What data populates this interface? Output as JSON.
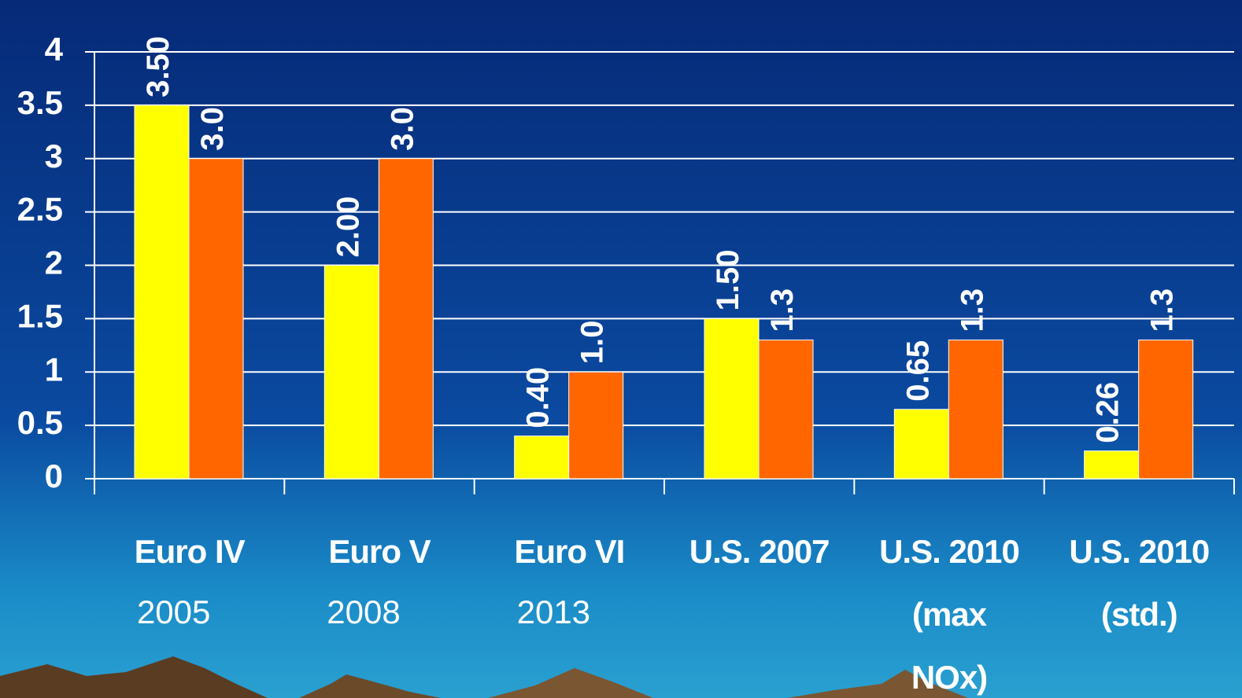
{
  "chart_data": {
    "type": "bar",
    "categories": [
      "Euro IV",
      "Euro V",
      "Euro VI",
      "U.S. 2007",
      "U.S. 2010 (max NOx)",
      "U.S. 2010 (std.)"
    ],
    "category_years": [
      "2005",
      "2008",
      "2013",
      null,
      null,
      null
    ],
    "series": [
      {
        "color": "#ffff00",
        "values": [
          3.5,
          2,
          0.4,
          1.5,
          0.65,
          0.26
        ],
        "value_labels": [
          "3.50",
          "2.00",
          "0.40",
          "1.50",
          "0.65",
          "0.26"
        ]
      },
      {
        "color": "#ff6600",
        "values": [
          3,
          3,
          1,
          1.3,
          1.3,
          1.3
        ],
        "value_labels": [
          "3.0",
          "3.0",
          "1.0",
          "1.3",
          "1.3",
          "1.3"
        ]
      }
    ],
    "ylim": [
      0,
      4
    ],
    "yticks": [
      0,
      0.5,
      1,
      1.5,
      2,
      2.5,
      3,
      3.5,
      4
    ],
    "grid": true
  }
}
